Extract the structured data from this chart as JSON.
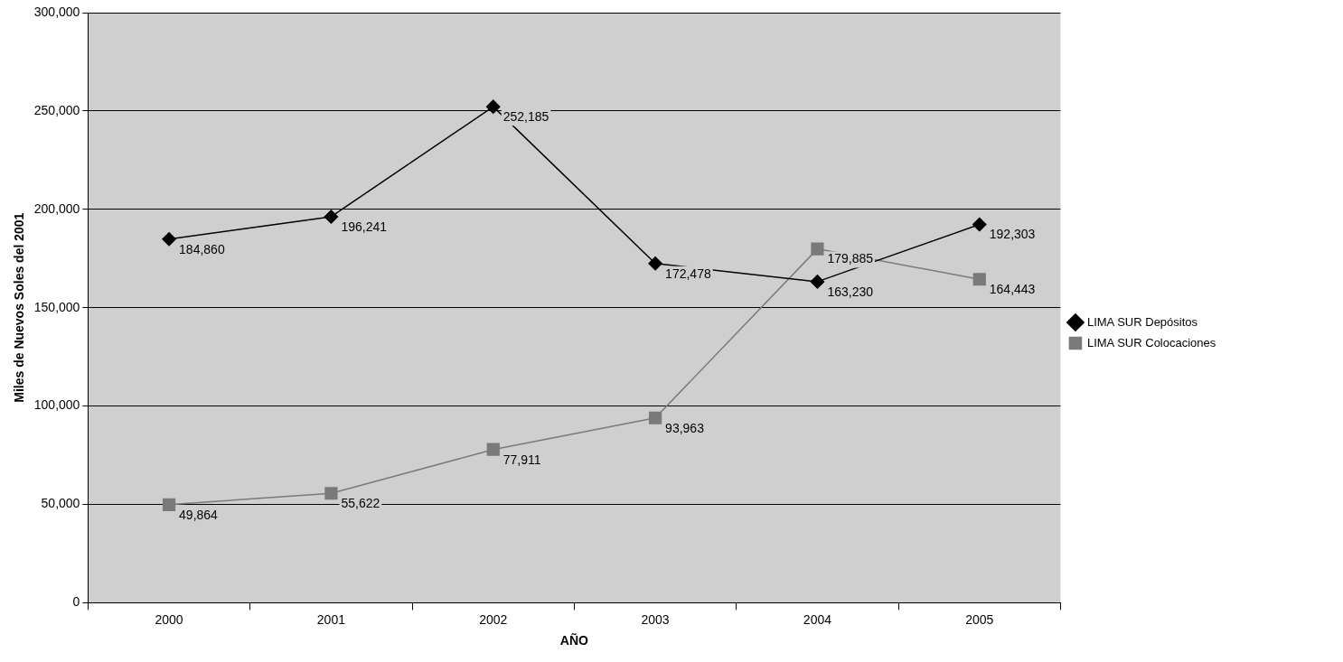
{
  "chart_data": {
    "type": "line",
    "xlabel": "AÑO",
    "ylabel": "Miles de Nuevos Soles del 2001",
    "categories": [
      "2000",
      "2001",
      "2002",
      "2003",
      "2004",
      "2005"
    ],
    "series": [
      {
        "name": "LIMA SUR Depósitos",
        "color": "#000000",
        "marker": "diamond",
        "values": [
          184860,
          196241,
          252185,
          172478,
          163230,
          192303
        ],
        "value_labels": [
          "184,860",
          "196,241",
          "252,185",
          "172,478",
          "163,230",
          "192,303"
        ]
      },
      {
        "name": "LIMA SUR Colocaciones",
        "color": "#7a7a7a",
        "marker": "square",
        "values": [
          49864,
          55622,
          77911,
          93963,
          179885,
          164443
        ],
        "value_labels": [
          "49,864",
          "55,622",
          "77,911",
          "93,963",
          "179,885",
          "164,443"
        ]
      }
    ],
    "ylim": [
      0,
      300000
    ],
    "yticks": [
      0,
      {
        "value": 50000,
        "label": "50,000"
      },
      {
        "value": 100000,
        "label": "100,000"
      },
      {
        "value": 150000,
        "label": "150,000"
      },
      {
        "value": 200000,
        "label": "200,000"
      },
      {
        "value": 250000,
        "label": "250,000"
      },
      {
        "value": 300000,
        "label": "300,000"
      }
    ],
    "grid": "y",
    "legend": "right"
  }
}
